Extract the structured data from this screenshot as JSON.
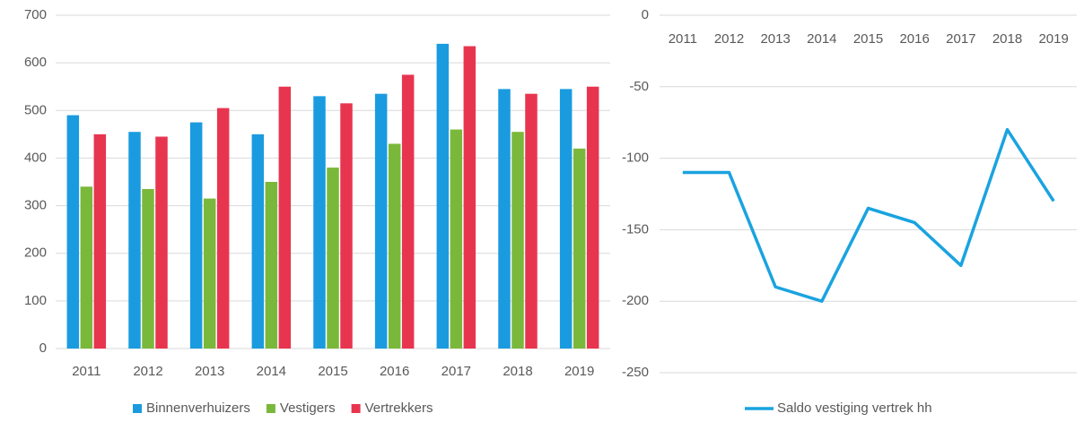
{
  "chart_data": [
    {
      "type": "bar",
      "categories": [
        "2011",
        "2012",
        "2013",
        "2014",
        "2015",
        "2016",
        "2017",
        "2018",
        "2019"
      ],
      "series": [
        {
          "name": "Binnenverhuizers",
          "color": "#1a9be0",
          "values": [
            490,
            455,
            475,
            450,
            530,
            535,
            640,
            545,
            545
          ]
        },
        {
          "name": "Vestigers",
          "color": "#7ab83b",
          "values": [
            340,
            335,
            315,
            350,
            380,
            430,
            460,
            455,
            420
          ]
        },
        {
          "name": "Vertrekkers",
          "color": "#e8354f",
          "values": [
            450,
            445,
            505,
            550,
            515,
            575,
            635,
            535,
            550
          ]
        }
      ],
      "ylim": [
        0,
        700
      ],
      "yticks": [
        0,
        100,
        200,
        300,
        400,
        500,
        600,
        700
      ],
      "grid": true,
      "legend": "bottom"
    },
    {
      "type": "line",
      "categories": [
        "2011",
        "2012",
        "2013",
        "2014",
        "2015",
        "2016",
        "2017",
        "2018",
        "2019"
      ],
      "series": [
        {
          "name": "Saldo vestiging vertrek hh",
          "color": "#1aa3e0",
          "values": [
            -110,
            -110,
            -190,
            -200,
            -135,
            -145,
            -175,
            -80,
            -130
          ]
        }
      ],
      "ylim": [
        -250,
        0
      ],
      "yticks": [
        0,
        -50,
        -100,
        -150,
        -200,
        -250
      ],
      "grid": true,
      "legend": "bottom"
    }
  ]
}
